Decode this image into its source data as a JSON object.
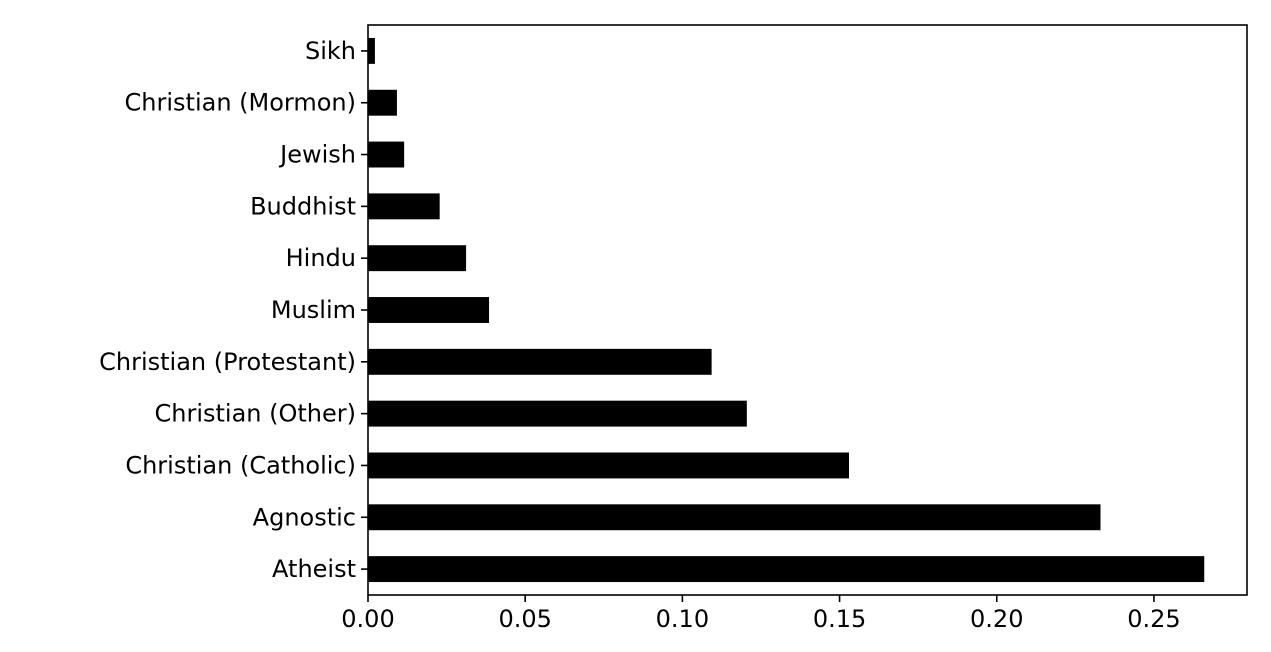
{
  "chart_data": {
    "type": "bar",
    "orientation": "horizontal",
    "title": "",
    "xlabel": "",
    "ylabel": "",
    "categories": [
      "Atheist",
      "Agnostic",
      "Christian (Catholic)",
      "Christian (Other)",
      "Christian (Protestant)",
      "Muslim",
      "Hindu",
      "Buddhist",
      "Jewish",
      "Christian (Mormon)",
      "Sikh"
    ],
    "values": [
      0.266,
      0.233,
      0.153,
      0.1205,
      0.1093,
      0.0385,
      0.0312,
      0.0228,
      0.0115,
      0.0092,
      0.0022
    ],
    "xlim": [
      0,
      0.2796
    ],
    "xticks": [
      0.0,
      0.05,
      0.1,
      0.15,
      0.2,
      0.25
    ],
    "xtick_labels": [
      "0.00",
      "0.05",
      "0.10",
      "0.15",
      "0.20",
      "0.25"
    ],
    "bar_color": "#000000",
    "grid": false,
    "legend": "none"
  }
}
